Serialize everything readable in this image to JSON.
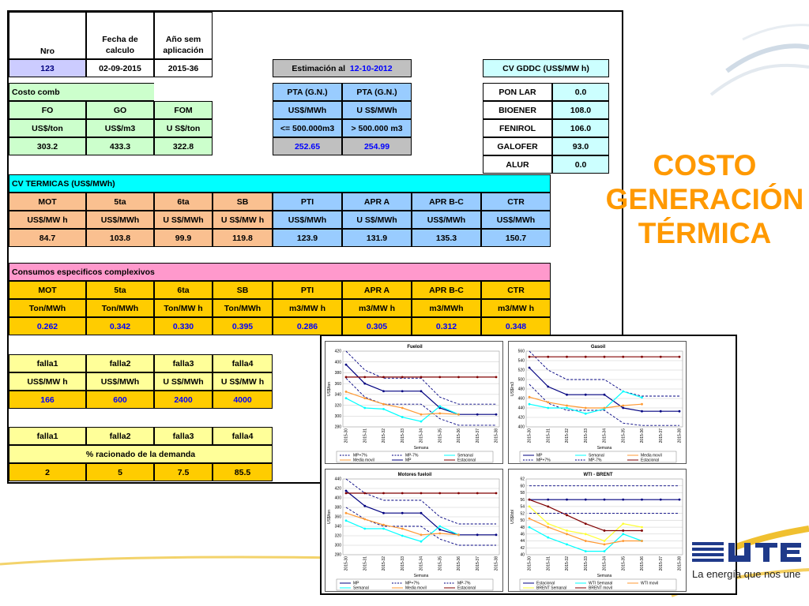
{
  "title": {
    "line1": "COSTO",
    "line2": "GENERACIÓN",
    "line3": "TÉRMICA"
  },
  "logo": {
    "brand": "UTE",
    "slogan": "La energía que nos une"
  },
  "header": {
    "nro_label": "Nro",
    "fecha_label": "Fecha de calculo",
    "ano_label": "Año sem aplicación",
    "nro": "123",
    "fecha": "02-09-2015",
    "ano": "2015-36"
  },
  "estimacion": {
    "label": "Estimación al",
    "date": "12-10-2012"
  },
  "costo_comb": {
    "label": "Costo comb",
    "headers": [
      "FO",
      "GO",
      "FOM"
    ],
    "units": [
      "US$/ton",
      "US$/m3",
      "U S$/ton"
    ],
    "values": [
      "303.2",
      "433.3",
      "322.8"
    ]
  },
  "pta": {
    "headers": [
      "PTA (G.N.)",
      "PTA (G.N.)"
    ],
    "units": [
      "US$/MWh",
      "U S$/MWh"
    ],
    "ranges": [
      "<= 500.000m3",
      "> 500.000 m3"
    ],
    "values": [
      "252.65",
      "254.99"
    ]
  },
  "cv_gddc": {
    "label": "CV GDDC (US$/MW h)",
    "rows": [
      {
        "name": "PON LAR",
        "value": "0.0"
      },
      {
        "name": "BIOENER",
        "value": "108.0"
      },
      {
        "name": "FENIROL",
        "value": "106.0"
      },
      {
        "name": "GALOFER",
        "value": "93.0"
      },
      {
        "name": "ALUR",
        "value": "0.0"
      }
    ]
  },
  "cv_termicas": {
    "label": "CV TERMICAS (US$/MWh)",
    "headers": [
      "MOT",
      "5ta",
      "6ta",
      "SB",
      "PTI",
      "APR A",
      "APR B-C",
      "CTR"
    ],
    "units": [
      "US$/MW h",
      "US$/MWh",
      "U S$/MWh",
      "U S$/MW h",
      "US$/MWh",
      "U S$/MWh",
      "US$/MWh",
      "US$/MWh"
    ],
    "values": [
      "84.7",
      "103.8",
      "99.9",
      "119.8",
      "123.9",
      "131.9",
      "135.3",
      "150.7"
    ]
  },
  "consumos": {
    "label": "Consumos especificos complexivos",
    "headers": [
      "MOT",
      "5ta",
      "6ta",
      "SB",
      "PTI",
      "APR A",
      "APR B-C",
      "CTR"
    ],
    "units": [
      "Ton/MWh",
      "Ton/MWh",
      "Ton/MW h",
      "Ton/MWh",
      "m3/MW h",
      "m3/MW h",
      "m3/MWh",
      "m3/MW h"
    ],
    "values": [
      "0.262",
      "0.342",
      "0.330",
      "0.395",
      "0.286",
      "0.305",
      "0.312",
      "0.348"
    ]
  },
  "falla_costos": {
    "headers": [
      "falla1",
      "falla2",
      "falla3",
      "falla4"
    ],
    "units": [
      "US$/MW h",
      "US$/MWh",
      "U S$/MWh",
      "U S$/MW h"
    ],
    "values": [
      "166",
      "600",
      "2400",
      "4000"
    ]
  },
  "falla_racion": {
    "headers": [
      "falla1",
      "falla2",
      "falla3",
      "falla4"
    ],
    "label": "% racionado de la demanda",
    "values": [
      "2",
      "5",
      "7.5",
      "85.5"
    ]
  },
  "colors": {
    "mp": "#000080",
    "mp_band": "#000080",
    "semanal": "#00ffff",
    "media_movil": "#ff9933",
    "estacional": "#800000",
    "wti": "#ffff33",
    "brent_semanal": "#ff9933",
    "brent_movil": "#800000",
    "title": "#ff9900"
  },
  "chart_data": [
    {
      "type": "line",
      "title": "Fueloil",
      "xlabel": "Semana",
      "ylabel": "US$/ton",
      "ylim": [
        280,
        420
      ],
      "yticks": [
        280,
        300,
        320,
        340,
        360,
        380,
        400,
        420
      ],
      "x": [
        "2015-30",
        "2015-31",
        "2015-32",
        "2015-33",
        "2015-34",
        "2015-35",
        "2015-36",
        "2015-37",
        "2015-38"
      ],
      "series": [
        {
          "name": "MP+7%",
          "style": "dashed",
          "color": "#000080",
          "values": [
            420,
            385,
            370,
            370,
            370,
            335,
            322,
            322,
            322
          ]
        },
        {
          "name": "MP-7%",
          "style": "dashed",
          "color": "#000080",
          "values": [
            370,
            335,
            322,
            322,
            322,
            295,
            283,
            283,
            283
          ]
        },
        {
          "name": "MP",
          "style": "solid",
          "color": "#000080",
          "values": [
            395,
            360,
            346,
            346,
            346,
            315,
            303,
            303,
            303
          ]
        },
        {
          "name": "Semanal",
          "style": "solid",
          "color": "#00ffff",
          "values": [
            333,
            315,
            313,
            298,
            290,
            318,
            303,
            null,
            null
          ]
        },
        {
          "name": "Media movil",
          "style": "solid",
          "color": "#ff9933",
          "values": [
            345,
            333,
            322,
            315,
            303,
            305,
            303,
            null,
            null
          ]
        },
        {
          "name": "Estacional",
          "style": "solid",
          "color": "#800000",
          "values": [
            372,
            372,
            372,
            372,
            372,
            372,
            372,
            372,
            372
          ]
        }
      ],
      "legend": [
        "MP+7%",
        "MP-7%",
        "Semanal",
        "Media movil",
        "MP",
        "Estacional"
      ]
    },
    {
      "type": "line",
      "title": "Gasoil",
      "xlabel": "Semana",
      "ylabel": "US$/m3",
      "ylim": [
        400,
        560
      ],
      "yticks": [
        400,
        420,
        440,
        460,
        480,
        500,
        520,
        540,
        560
      ],
      "x": [
        "2015-30",
        "2015-31",
        "2015-32",
        "2015-33",
        "2015-34",
        "2015-35",
        "2015-36",
        "2015-37",
        "2015-38"
      ],
      "series": [
        {
          "name": "MP+7%",
          "style": "dashed",
          "color": "#000080",
          "values": [
            560,
            520,
            500,
            500,
            500,
            475,
            465,
            465,
            465
          ]
        },
        {
          "name": "MP-7%",
          "style": "dashed",
          "color": "#000080",
          "values": [
            490,
            450,
            435,
            435,
            435,
            408,
            403,
            403,
            403
          ]
        },
        {
          "name": "MP",
          "style": "solid",
          "color": "#000080",
          "values": [
            525,
            485,
            468,
            468,
            468,
            440,
            433,
            433,
            433
          ]
        },
        {
          "name": "Semanal",
          "style": "solid",
          "color": "#00ffff",
          "values": [
            448,
            440,
            440,
            428,
            438,
            475,
            462,
            null,
            null
          ]
        },
        {
          "name": "Media movil",
          "style": "solid",
          "color": "#ff9933",
          "values": [
            463,
            452,
            445,
            440,
            440,
            445,
            448,
            null,
            null
          ]
        },
        {
          "name": "Estacional",
          "style": "solid",
          "color": "#800000",
          "values": [
            548,
            548,
            548,
            548,
            548,
            548,
            548,
            548,
            548
          ]
        }
      ],
      "legend": [
        "MP",
        "Semanal",
        "Media movil",
        "MP+7%",
        "MP-7%",
        "Estacional"
      ]
    },
    {
      "type": "line",
      "title": "Motores fueloil",
      "xlabel": "Semana",
      "ylabel": "US$/ton",
      "ylim": [
        280,
        440
      ],
      "yticks": [
        280,
        300,
        320,
        340,
        360,
        380,
        400,
        420,
        440
      ],
      "x": [
        "2015-30",
        "2015-31",
        "2015-32",
        "2015-33",
        "2015-34",
        "2015-35",
        "2015-36",
        "2015-37",
        "2015-38"
      ],
      "series": [
        {
          "name": "MP+7%",
          "style": "dashed",
          "color": "#000080",
          "values": [
            440,
            410,
            395,
            395,
            395,
            360,
            345,
            345,
            345
          ]
        },
        {
          "name": "MP-7%",
          "style": "dashed",
          "color": "#000080",
          "values": [
            380,
            355,
            340,
            340,
            340,
            313,
            300,
            300,
            300
          ]
        },
        {
          "name": "MP",
          "style": "solid",
          "color": "#000080",
          "values": [
            415,
            383,
            368,
            368,
            368,
            333,
            322,
            322,
            322
          ]
        },
        {
          "name": "Semanal",
          "style": "solid",
          "color": "#00ffff",
          "values": [
            352,
            335,
            335,
            320,
            308,
            340,
            322,
            null,
            null
          ]
        },
        {
          "name": "Media movil",
          "style": "solid",
          "color": "#ff9933",
          "values": [
            368,
            355,
            343,
            335,
            322,
            325,
            322,
            null,
            null
          ]
        },
        {
          "name": "Estacional",
          "style": "solid",
          "color": "#800000",
          "values": [
            410,
            410,
            410,
            410,
            410,
            410,
            410,
            410,
            410
          ]
        }
      ],
      "legend": [
        "MP",
        "MP+7%",
        "MP-7%",
        "Semanal",
        "Media movil",
        "Estacional"
      ]
    },
    {
      "type": "line",
      "title": "WTI - BRENT",
      "xlabel": "Semana",
      "ylabel": "US$/bbl",
      "ylim": [
        40,
        62
      ],
      "yticks": [
        40,
        42,
        44,
        46,
        48,
        50,
        52,
        54,
        56,
        58,
        60,
        62
      ],
      "x": [
        "2015-30",
        "2015-31",
        "2015-32",
        "2015-33",
        "2015-34",
        "2015-35",
        "2015-36",
        "2015-37",
        "2015-38"
      ],
      "series": [
        {
          "name": "Estacional",
          "style": "solid",
          "color": "#000080",
          "values": [
            56,
            56,
            56,
            56,
            56,
            56,
            56,
            56,
            56
          ]
        },
        {
          "name": "WTI Semanal",
          "style": "solid",
          "color": "#00ffff",
          "values": [
            48,
            45,
            43,
            41,
            41,
            46,
            44,
            null,
            null
          ]
        },
        {
          "name": "WTI movil",
          "style": "solid",
          "color": "#ff9933",
          "values": [
            50.5,
            48,
            46,
            44,
            43,
            44,
            44,
            null,
            null
          ]
        },
        {
          "name": "BRENT Semanal",
          "style": "solid",
          "color": "#ffff33",
          "values": [
            54,
            49,
            47,
            46,
            44,
            49,
            48,
            null,
            null
          ]
        },
        {
          "name": "BRENT movil",
          "style": "solid",
          "color": "#800000",
          "values": [
            56,
            54,
            51.5,
            49,
            47,
            47,
            47,
            null,
            null
          ]
        },
        {
          "name": "MP+7%",
          "style": "dashed",
          "color": "#000080",
          "values": [
            60,
            60,
            60,
            60,
            60,
            60,
            60,
            60,
            60
          ]
        },
        {
          "name": "MP-7%",
          "style": "dashed",
          "color": "#000080",
          "values": [
            52,
            52,
            52,
            52,
            52,
            52,
            52,
            52,
            52
          ]
        }
      ],
      "legend": [
        "Estacional",
        "WTI Semanal",
        "WTI movil",
        "BRENT Semanal",
        "BRENT movil"
      ]
    }
  ]
}
